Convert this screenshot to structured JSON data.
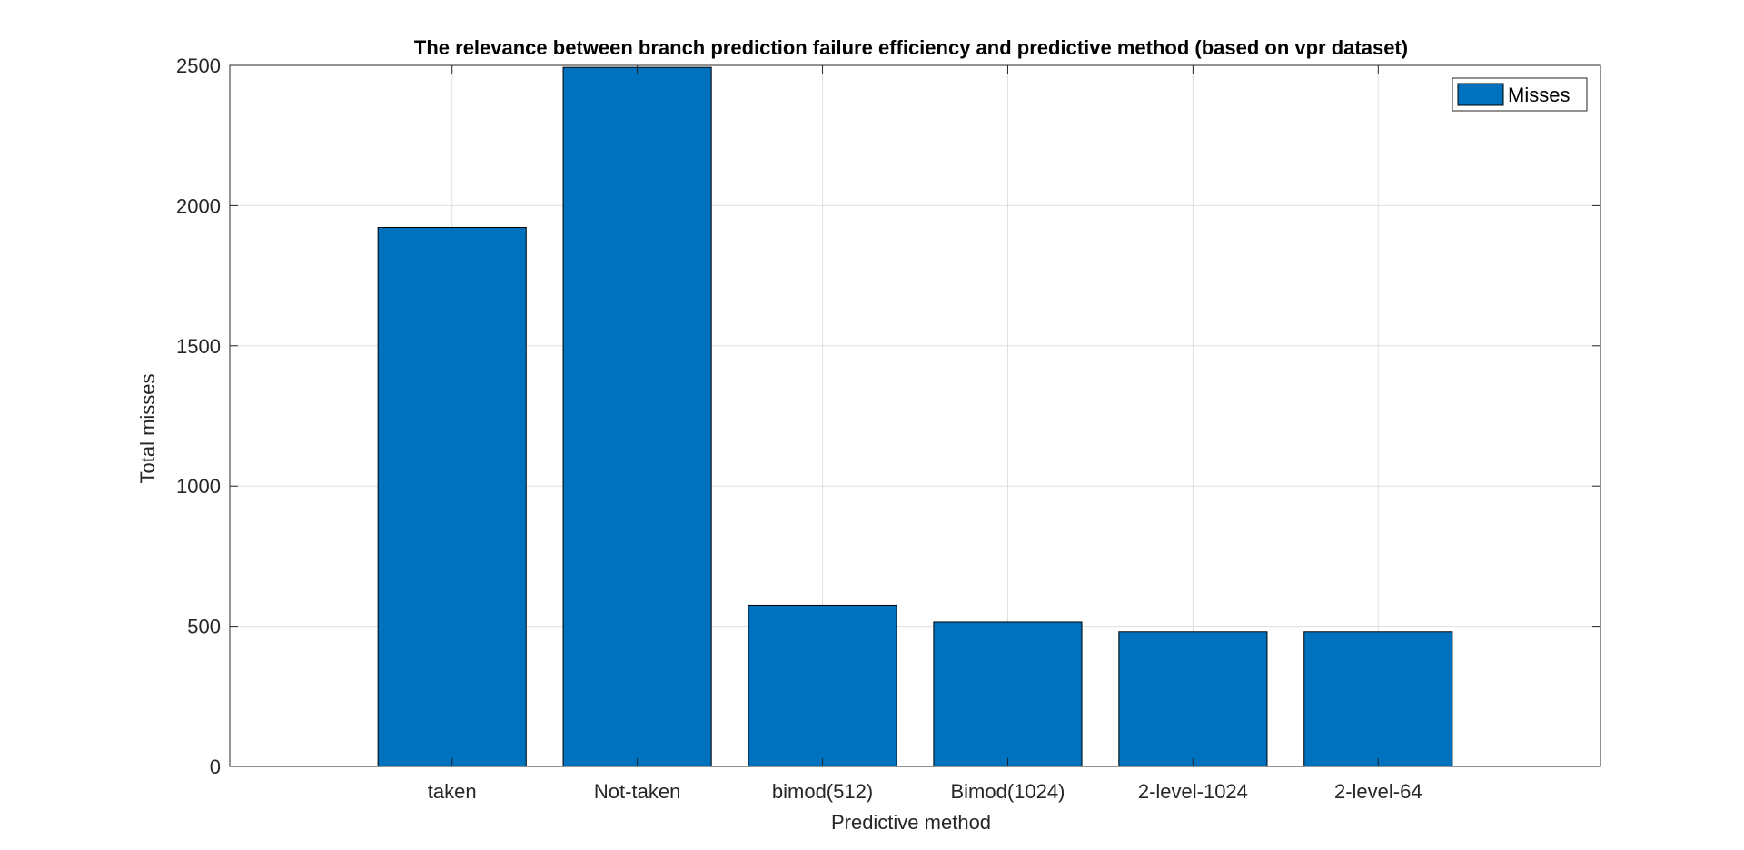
{
  "chart_data": {
    "type": "bar",
    "title": "The relevance between branch prediction failure efficiency and predictive method (based on vpr dataset)",
    "xlabel": "Predictive method",
    "ylabel": "Total misses",
    "categories": [
      "taken",
      "Not-taken",
      "bimod(512)",
      "Bimod(1024)",
      "2-level-1024",
      "2-level-64"
    ],
    "series": [
      {
        "name": "Misses",
        "values": [
          1922,
          2493,
          575,
          515,
          480,
          480
        ],
        "color": "#0072BD"
      }
    ],
    "ylim": [
      0,
      2500
    ],
    "yticks": [
      0,
      500,
      1000,
      1500,
      2000,
      2500
    ],
    "ytick_labels": [
      "0",
      "500",
      "1000",
      "1500",
      "2000",
      "2500"
    ],
    "xlim": [
      -0.2,
      7.2
    ],
    "grid": true,
    "legend_position": "top-right"
  }
}
